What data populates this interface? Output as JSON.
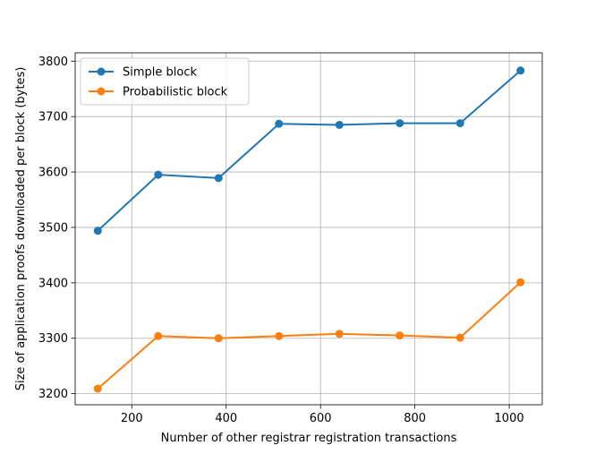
{
  "chart_data": {
    "type": "line",
    "title": "",
    "xlabel": "Number of other registrar registration transactions",
    "ylabel": "Size of application proofs downloaded per block (bytes)",
    "xlim": [
      80,
      1070
    ],
    "ylim": [
      3180,
      3815
    ],
    "grid": true,
    "legend_position": "top-left",
    "xticks": [
      200,
      400,
      600,
      800,
      1000
    ],
    "yticks": [
      3200,
      3300,
      3400,
      3500,
      3600,
      3700,
      3800
    ],
    "x": [
      128,
      256,
      384,
      512,
      640,
      768,
      896,
      1024
    ],
    "series": [
      {
        "name": "Simple block",
        "color": "#1f77b4",
        "values": [
          3494,
          3595,
          3589,
          3687,
          3685,
          3688,
          3688,
          3783
        ]
      },
      {
        "name": "Probabilistic block",
        "color": "#ff7f0e",
        "values": [
          3209,
          3304,
          3300,
          3304,
          3308,
          3305,
          3301,
          3401
        ]
      }
    ]
  }
}
